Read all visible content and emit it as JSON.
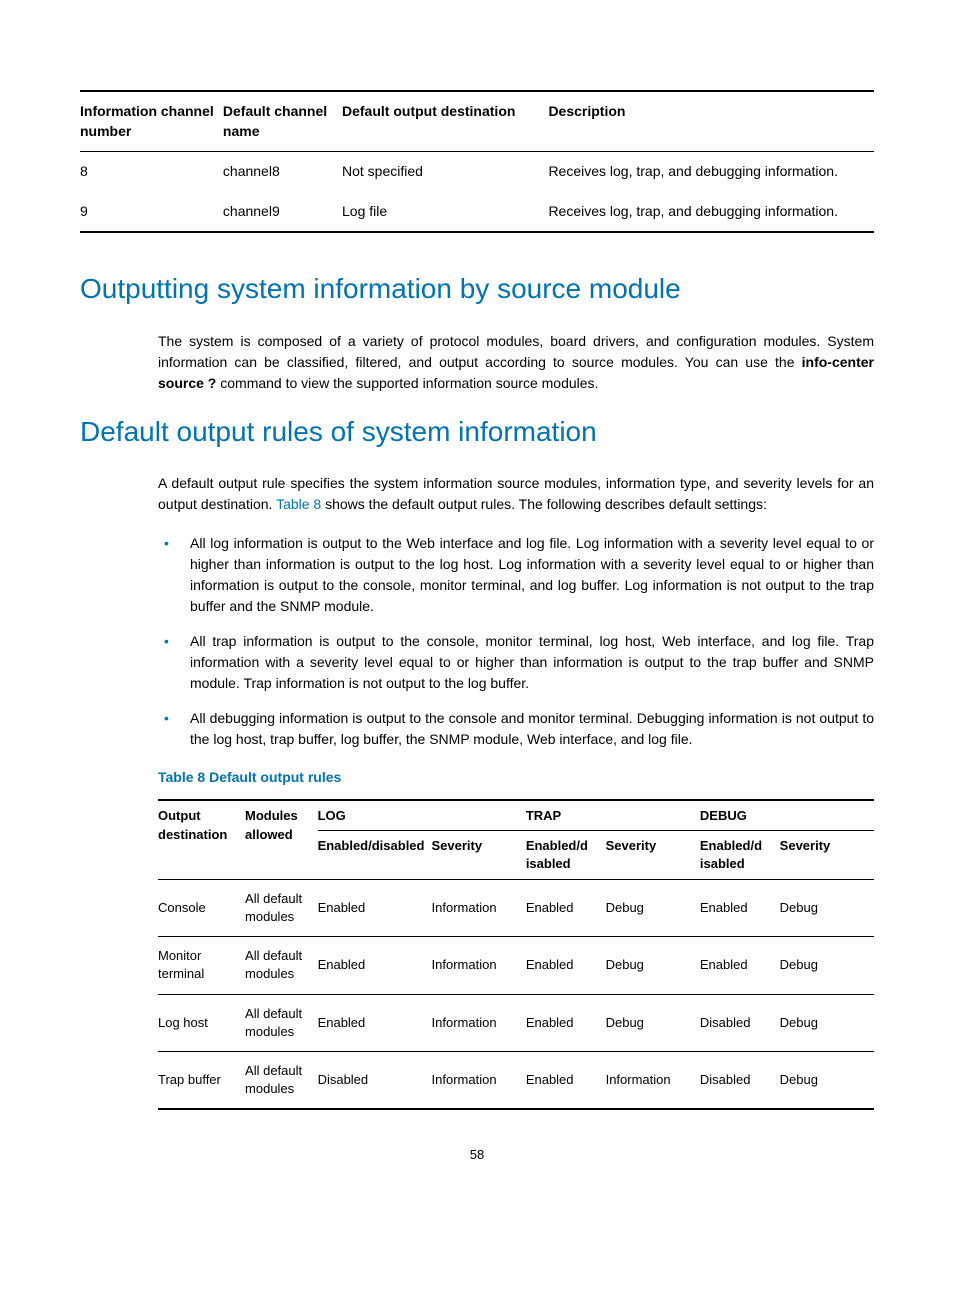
{
  "table1": {
    "headers": [
      "Information channel number",
      "Default channel name",
      "Default output destination",
      "Description"
    ],
    "rows": [
      {
        "num": "8",
        "name": "channel8",
        "dest": "Not specified",
        "desc": "Receives log, trap, and debugging information."
      },
      {
        "num": "9",
        "name": "channel9",
        "dest": "Log file",
        "desc": "Receives log, trap, and debugging information."
      }
    ]
  },
  "heading1": "Outputting system information by source module",
  "para1_prefix": "The system is composed of a variety of protocol modules, board drivers, and configuration modules. System information can be classified, filtered, and output according to source modules. You can use the ",
  "para1_bold": "info-center source ?",
  "para1_suffix": " command to view the supported information source modules.",
  "heading2": "Default output rules of system information",
  "para2_prefix": "A default output rule specifies the system information source modules, information type, and severity levels for an output destination. ",
  "para2_link": "Table 8",
  "para2_suffix": " shows the default output rules. The following describes default settings:",
  "bullets": [
    "All log information is output to the Web interface and log file. Log information with a severity level equal to or higher than information is output to the log host. Log information with a severity level equal to or higher than information is output to the console, monitor terminal, and log buffer. Log information is not output to the trap buffer and the SNMP module.",
    "All trap information is output to the console, monitor terminal, log host, Web interface, and log file. Trap information with a severity level equal to or higher than information is output to the trap buffer and SNMP module. Trap information is not output to the log buffer.",
    "All debugging information is output to the console and monitor terminal. Debugging information is not output to the log host, trap buffer, log buffer, the SNMP module, Web interface, and log file."
  ],
  "table2_caption": "Table 8 Default output rules",
  "table2": {
    "top_headers": {
      "col1": "Output destination",
      "col2": "Modules allowed",
      "cat1": "LOG",
      "cat2": "TRAP",
      "cat3": "DEBUG"
    },
    "sub_headers": {
      "en": "Enabled/disabled",
      "en2": "Enabled/d isabled",
      "sev": "Severity"
    },
    "rows": [
      {
        "out": "Console",
        "mod": "All default modules",
        "log_en": "Enabled",
        "log_sev": "Information",
        "trap_en": "Enabled",
        "trap_sev": "Debug",
        "dbg_en": "Enabled",
        "dbg_sev": "Debug"
      },
      {
        "out": "Monitor terminal",
        "mod": "All default modules",
        "log_en": "Enabled",
        "log_sev": "Information",
        "trap_en": "Enabled",
        "trap_sev": "Debug",
        "dbg_en": "Enabled",
        "dbg_sev": "Debug"
      },
      {
        "out": "Log host",
        "mod": "All default modules",
        "log_en": "Enabled",
        "log_sev": "Information",
        "trap_en": "Enabled",
        "trap_sev": "Debug",
        "dbg_en": "Disabled",
        "dbg_sev": "Debug"
      },
      {
        "out": "Trap buffer",
        "mod": "All default modules",
        "log_en": "Disabled",
        "log_sev": "Information",
        "trap_en": "Enabled",
        "trap_sev": "Information",
        "dbg_en": "Disabled",
        "dbg_sev": "Debug"
      }
    ]
  },
  "page_number": "58"
}
